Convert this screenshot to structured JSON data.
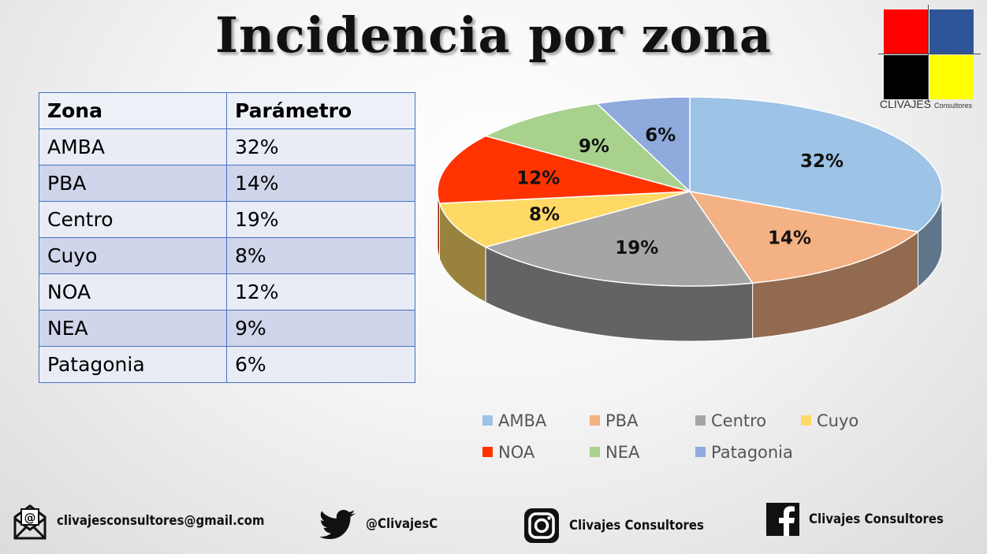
{
  "title": "Incidencia por zona",
  "logo": {
    "brand": "CLIVAJES",
    "sub": "Consultores",
    "colors": [
      "#ff0000",
      "#2e5597",
      "#000000",
      "#ffff00"
    ]
  },
  "table": {
    "headers": [
      "Zona",
      "Parámetro"
    ],
    "rows": [
      [
        "AMBA",
        "32%"
      ],
      [
        "PBA",
        "14%"
      ],
      [
        "Centro",
        "19%"
      ],
      [
        "Cuyo",
        "8%"
      ],
      [
        "NOA",
        "12%"
      ],
      [
        "NEA",
        "9%"
      ],
      [
        "Patagonia",
        "6%"
      ]
    ]
  },
  "chart_data": {
    "type": "pie",
    "style": "3d",
    "categories": [
      "AMBA",
      "PBA",
      "Centro",
      "Cuyo",
      "NOA",
      "NEA",
      "Patagonia"
    ],
    "values": [
      32,
      14,
      19,
      8,
      12,
      9,
      6
    ],
    "labels": [
      "32%",
      "14%",
      "19%",
      "8%",
      "12%",
      "9%",
      "6%"
    ],
    "colors": [
      "#9dc3e6",
      "#f4b183",
      "#a5a5a5",
      "#ffd966",
      "#ff3300",
      "#a9d18e",
      "#8faadc"
    ],
    "legend_position": "bottom"
  },
  "footer": {
    "email": "clivajesconsultores@gmail.com",
    "twitter": "@ClivajesC",
    "instagram": "Clivajes Consultores",
    "facebook": "Clivajes Consultores"
  }
}
